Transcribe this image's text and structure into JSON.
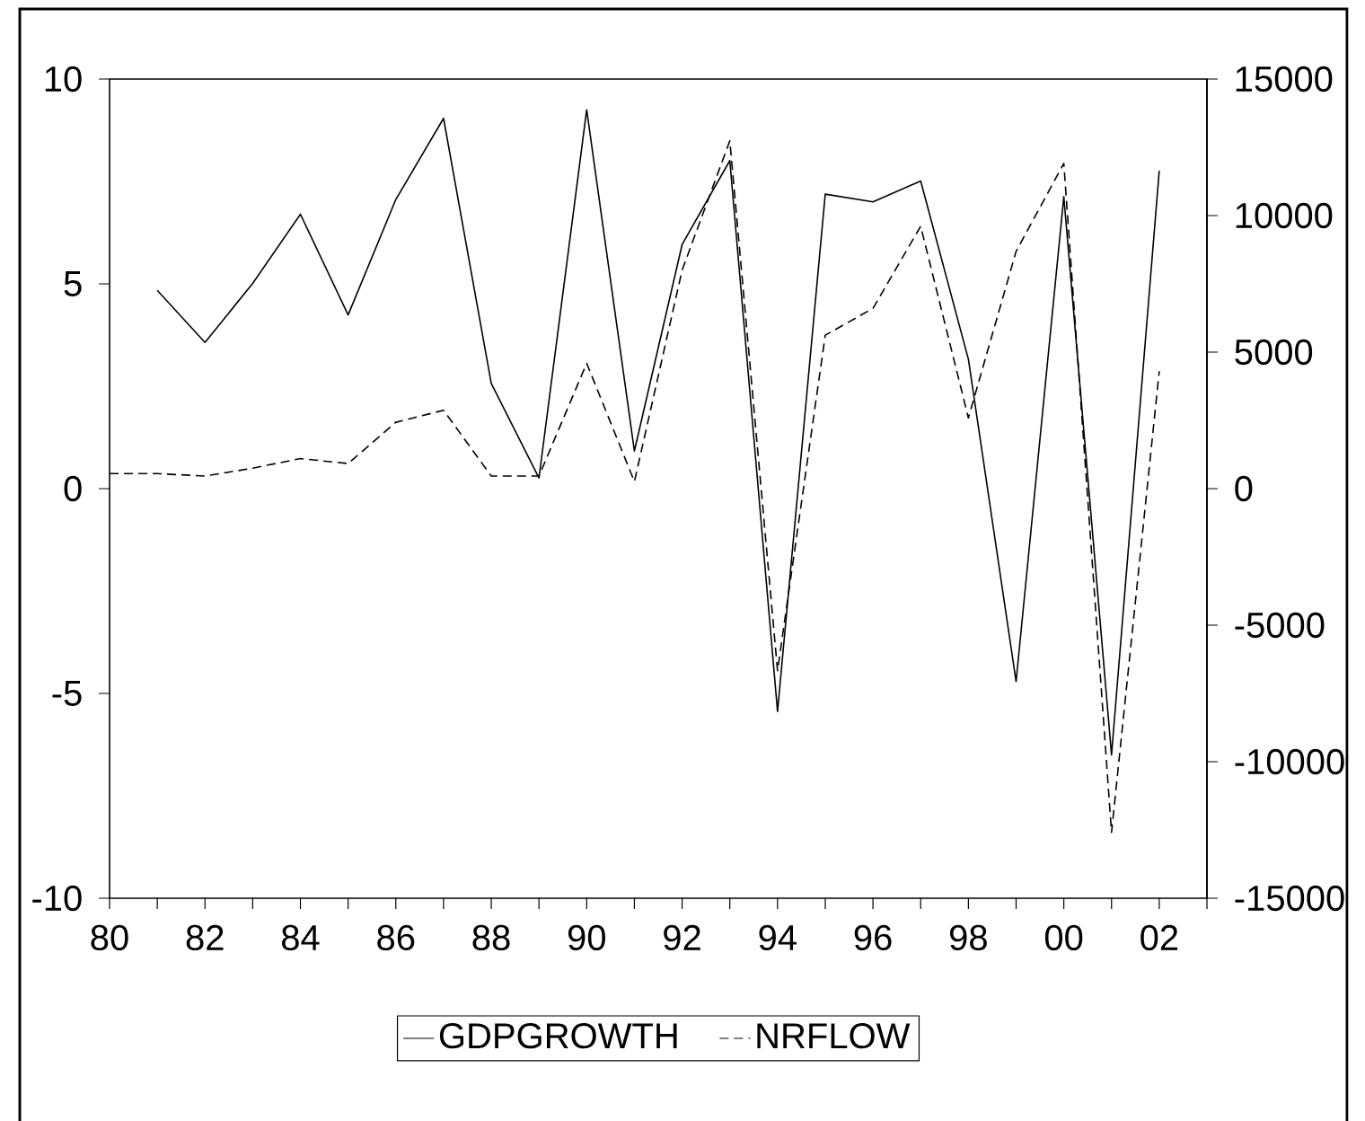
{
  "chart_data": {
    "type": "line",
    "x": [
      1980,
      1981,
      1982,
      1983,
      1984,
      1985,
      1986,
      1987,
      1988,
      1989,
      1990,
      1991,
      1992,
      1993,
      1994,
      1995,
      1996,
      1997,
      1998,
      1999,
      2000,
      2001,
      2002
    ],
    "series": [
      {
        "name": "GDPGROWTH",
        "color": "#000000",
        "line_style": "solid",
        "values": [
          null,
          4.84,
          3.57,
          5.01,
          6.7,
          4.24,
          7.06,
          9.04,
          2.57,
          0.26,
          9.25,
          0.92,
          5.96,
          8.01,
          -5.44,
          7.19,
          7.0,
          7.51,
          3.16,
          -4.71,
          7.13,
          -6.5,
          7.76
        ]
      },
      {
        "name": "NRFLOW",
        "color": "#000000",
        "line_style": "dashed",
        "axis": "y2",
        "values": [
          550,
          550,
          460,
          750,
          1100,
          920,
          2430,
          2870,
          460,
          460,
          4590,
          260,
          8000,
          12740,
          -6670,
          5620,
          6600,
          9610,
          2590,
          8690,
          11910,
          -12590,
          4300
        ]
      }
    ],
    "xlim": [
      1980,
      2003
    ],
    "xticks": [
      {
        "value": 1980,
        "label": "80"
      },
      {
        "value": 1981,
        "label": null
      },
      {
        "value": 1982,
        "label": "82"
      },
      {
        "value": 1983,
        "label": null
      },
      {
        "value": 1984,
        "label": "84"
      },
      {
        "value": 1985,
        "label": null
      },
      {
        "value": 1986,
        "label": "86"
      },
      {
        "value": 1987,
        "label": null
      },
      {
        "value": 1988,
        "label": "88"
      },
      {
        "value": 1989,
        "label": null
      },
      {
        "value": 1990,
        "label": "90"
      },
      {
        "value": 1991,
        "label": null
      },
      {
        "value": 1992,
        "label": "92"
      },
      {
        "value": 1993,
        "label": null
      },
      {
        "value": 1994,
        "label": "94"
      },
      {
        "value": 1995,
        "label": null
      },
      {
        "value": 1996,
        "label": "96"
      },
      {
        "value": 1997,
        "label": null
      },
      {
        "value": 1998,
        "label": "98"
      },
      {
        "value": 1999,
        "label": null
      },
      {
        "value": 2000,
        "label": "00"
      },
      {
        "value": 2001,
        "label": null
      },
      {
        "value": 2002,
        "label": "02"
      },
      {
        "value": 2003,
        "label": null
      }
    ],
    "ylim": [
      -10,
      10
    ],
    "yticks": [
      -10,
      -5,
      0,
      5,
      10
    ],
    "y2lim": [
      -15000,
      15000
    ],
    "y2ticks": [
      -15000,
      -10000,
      -5000,
      0,
      5000,
      10000,
      15000
    ],
    "legend": "bottom",
    "grid": false,
    "marker": "none"
  }
}
